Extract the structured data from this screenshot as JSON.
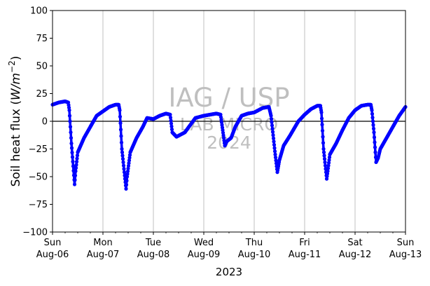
{
  "chart_data": {
    "type": "line",
    "ylabel": "Soil heat flux (W/m⁻²)",
    "ylabel_parts": {
      "text": "Soil heat flux (",
      "italic": "W/m",
      "sup": "−2",
      "close": ")"
    },
    "xlabel": "2023",
    "ylim": [
      -100,
      100
    ],
    "xlim": [
      "2023-08-06",
      "2023-08-13"
    ],
    "yticks": [
      100,
      75,
      50,
      25,
      0,
      -25,
      -50,
      -75,
      -100
    ],
    "yticklabels": [
      "100",
      "75",
      "50",
      "25",
      "0",
      "−25",
      "−50",
      "−75",
      "−100"
    ],
    "xticks": [
      {
        "date": "2023-08-06",
        "day": "Sun",
        "date_label": "Aug-06"
      },
      {
        "date": "2023-08-07",
        "day": "Mon",
        "date_label": "Aug-07"
      },
      {
        "date": "2023-08-08",
        "day": "Tue",
        "date_label": "Aug-08"
      },
      {
        "date": "2023-08-09",
        "day": "Wed",
        "date_label": "Aug-09"
      },
      {
        "date": "2023-08-10",
        "day": "Thu",
        "date_label": "Aug-10"
      },
      {
        "date": "2023-08-11",
        "day": "Fri",
        "date_label": "Aug-11"
      },
      {
        "date": "2023-08-12",
        "day": "Sat",
        "date_label": "Aug-12"
      },
      {
        "date": "2023-08-13",
        "day": "Sun",
        "date_label": "Aug-13"
      }
    ],
    "grid": "vertical",
    "zero_line": true,
    "color": "#0000ff",
    "series": [
      {
        "points": [
          [
            "2023-08-06 00:00",
            15
          ],
          [
            "2023-08-06 03:00",
            17
          ],
          [
            "2023-08-06 06:00",
            18
          ],
          [
            "2023-08-06 07:30",
            17
          ],
          [
            "2023-08-06 08:00",
            10
          ],
          [
            "2023-08-06 09:00",
            -20
          ],
          [
            "2023-08-06 10:30",
            -57
          ],
          [
            "2023-08-06 11:00",
            -45
          ],
          [
            "2023-08-06 12:00",
            -28
          ],
          [
            "2023-08-06 15:00",
            -15
          ],
          [
            "2023-08-06 18:00",
            -5
          ],
          [
            "2023-08-06 21:00",
            5
          ],
          [
            "2023-08-07 00:00",
            9
          ],
          [
            "2023-08-07 03:00",
            13
          ],
          [
            "2023-08-07 06:00",
            15
          ],
          [
            "2023-08-07 07:30",
            15
          ],
          [
            "2023-08-07 08:00",
            10
          ],
          [
            "2023-08-07 09:00",
            -25
          ],
          [
            "2023-08-07 11:00",
            -61
          ],
          [
            "2023-08-07 11:30",
            -50
          ],
          [
            "2023-08-07 13:00",
            -28
          ],
          [
            "2023-08-07 16:00",
            -15
          ],
          [
            "2023-08-07 19:00",
            -5
          ],
          [
            "2023-08-07 21:00",
            3
          ],
          [
            "2023-08-08 00:00",
            2
          ],
          [
            "2023-08-08 03:00",
            5
          ],
          [
            "2023-08-08 06:00",
            7
          ],
          [
            "2023-08-08 08:00",
            6
          ],
          [
            "2023-08-08 09:00",
            -10
          ],
          [
            "2023-08-08 11:00",
            -14
          ],
          [
            "2023-08-08 15:00",
            -10
          ],
          [
            "2023-08-08 20:00",
            3
          ],
          [
            "2023-08-09 00:00",
            5
          ],
          [
            "2023-08-09 06:00",
            7
          ],
          [
            "2023-08-09 08:00",
            6
          ],
          [
            "2023-08-09 10:00",
            -22
          ],
          [
            "2023-08-09 11:00",
            -18
          ],
          [
            "2023-08-09 13:00",
            -15
          ],
          [
            "2023-08-09 15:00",
            -5
          ],
          [
            "2023-08-09 18:00",
            5
          ],
          [
            "2023-08-09 21:00",
            7
          ],
          [
            "2023-08-10 00:00",
            8
          ],
          [
            "2023-08-10 04:00",
            12
          ],
          [
            "2023-08-10 07:00",
            13
          ],
          [
            "2023-08-10 08:00",
            5
          ],
          [
            "2023-08-10 10:00",
            -30
          ],
          [
            "2023-08-10 11:00",
            -46
          ],
          [
            "2023-08-10 12:00",
            -35
          ],
          [
            "2023-08-10 14:00",
            -22
          ],
          [
            "2023-08-10 17:00",
            -13
          ],
          [
            "2023-08-10 21:00",
            0
          ],
          [
            "2023-08-11 00:00",
            6
          ],
          [
            "2023-08-11 03:00",
            11
          ],
          [
            "2023-08-11 06:00",
            14
          ],
          [
            "2023-08-11 07:30",
            14
          ],
          [
            "2023-08-11 08:00",
            8
          ],
          [
            "2023-08-11 09:00",
            -25
          ],
          [
            "2023-08-11 10:30",
            -52
          ],
          [
            "2023-08-11 11:00",
            -45
          ],
          [
            "2023-08-11 12:00",
            -30
          ],
          [
            "2023-08-11 15:00",
            -20
          ],
          [
            "2023-08-11 18:00",
            -8
          ],
          [
            "2023-08-11 21:00",
            3
          ],
          [
            "2023-08-12 00:00",
            10
          ],
          [
            "2023-08-12 03:00",
            14
          ],
          [
            "2023-08-12 06:00",
            15
          ],
          [
            "2023-08-12 07:30",
            15
          ],
          [
            "2023-08-12 08:00",
            10
          ],
          [
            "2023-08-12 09:00",
            -10
          ],
          [
            "2023-08-12 10:00",
            -37
          ],
          [
            "2023-08-12 11:00",
            -33
          ],
          [
            "2023-08-12 12:00",
            -25
          ],
          [
            "2023-08-12 15:00",
            -15
          ],
          [
            "2023-08-12 18:00",
            -5
          ],
          [
            "2023-08-12 21:00",
            5
          ],
          [
            "2023-08-13 00:00",
            13
          ]
        ]
      }
    ]
  },
  "watermark": {
    "line1": "IAG / USP",
    "line2": "LAB MICRO",
    "line3": "2024"
  }
}
